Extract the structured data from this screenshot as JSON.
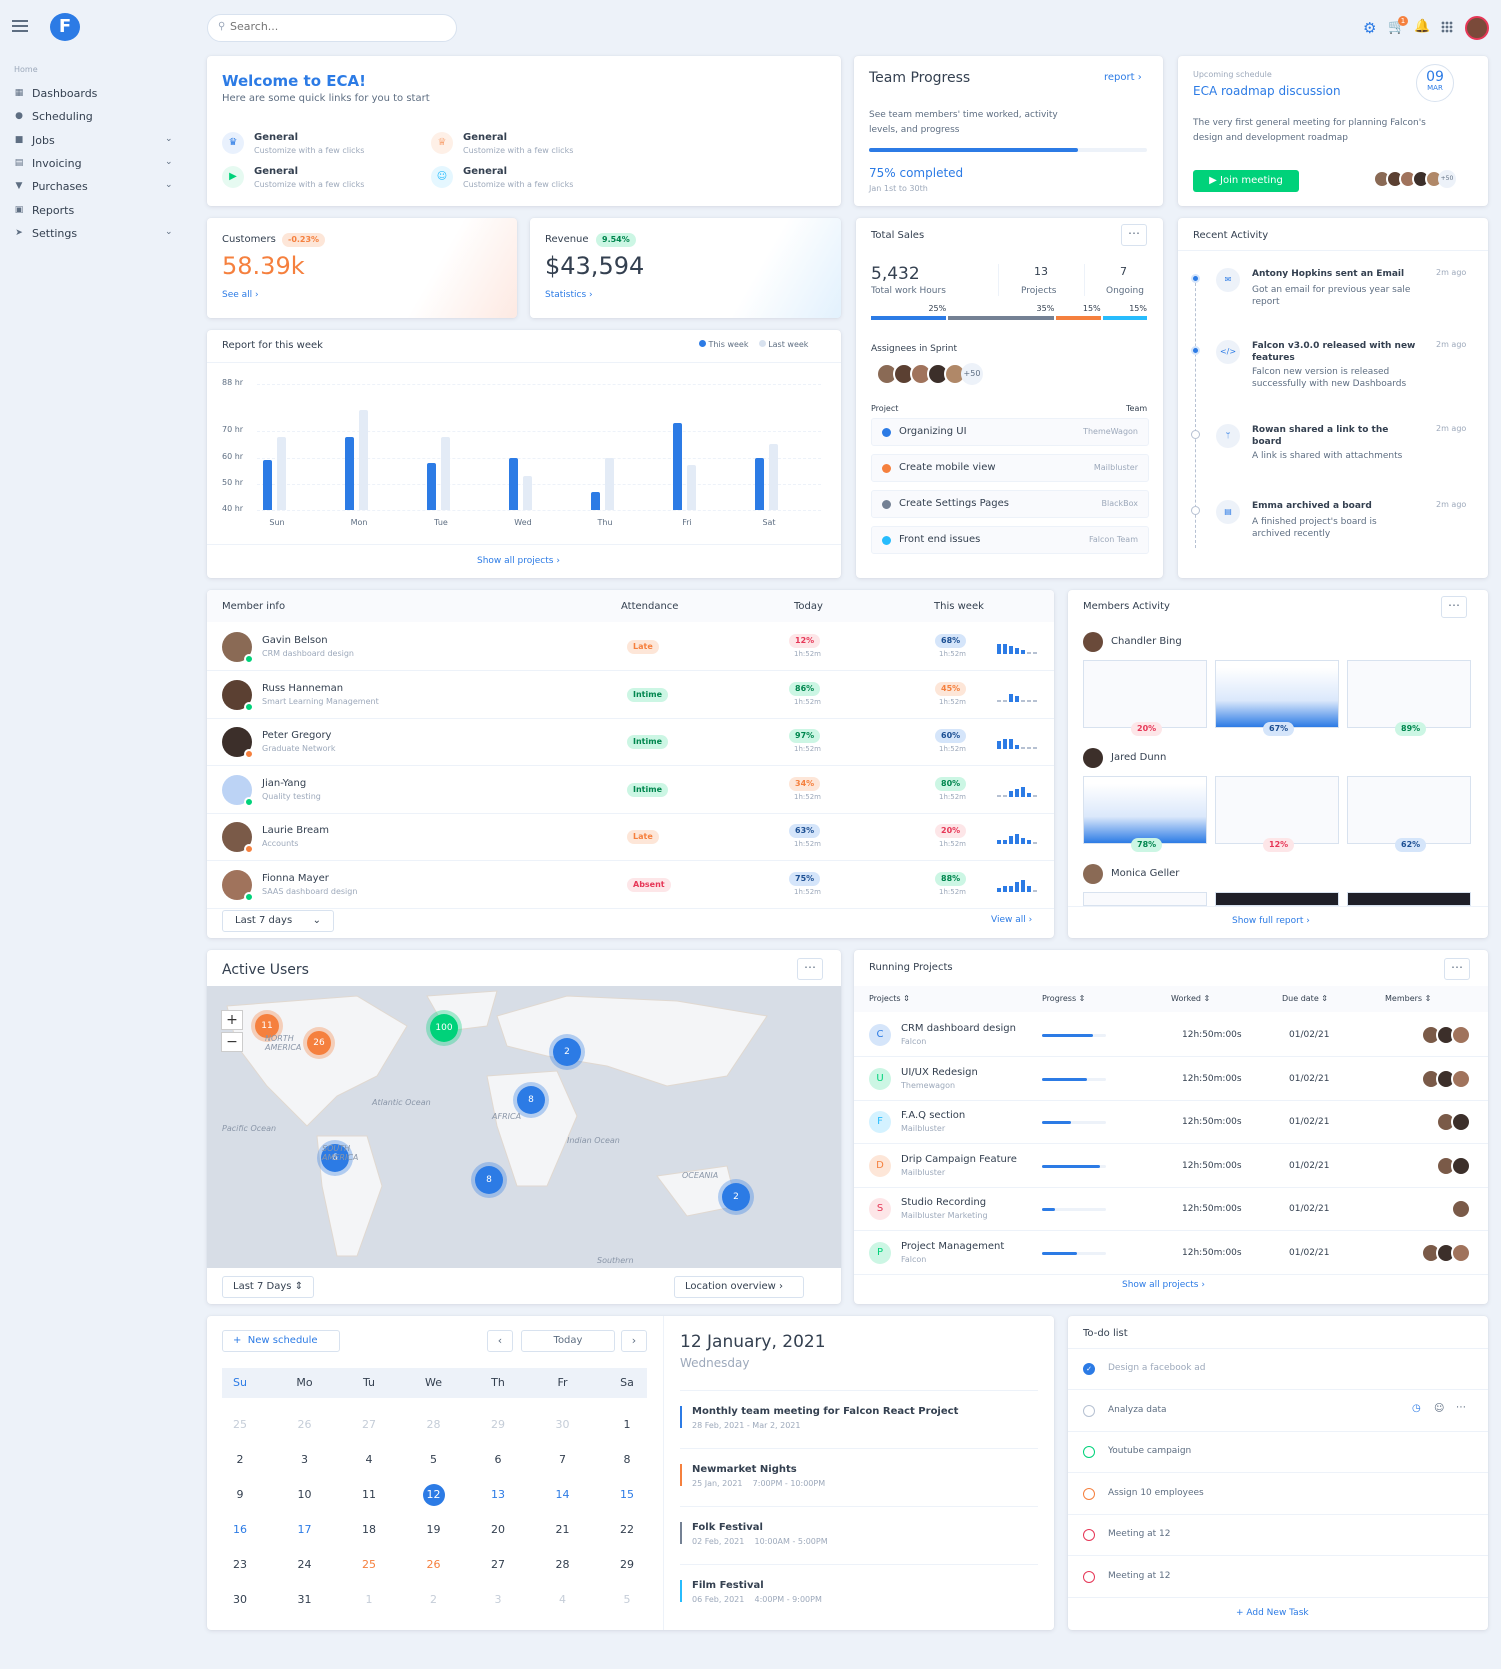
{
  "topbar": {
    "search_placeholder": "Search..."
  },
  "sidebar": {
    "section": "Home",
    "items": [
      {
        "label": "Dashboards"
      },
      {
        "label": "Scheduling"
      },
      {
        "label": "Jobs"
      },
      {
        "label": "Invoicing"
      },
      {
        "label": "Purchases"
      },
      {
        "label": "Reports"
      },
      {
        "label": "Settings"
      }
    ]
  },
  "welcome": {
    "title": "Welcome to ECA!",
    "subtitle": "Here are some quick links for you to start",
    "links": [
      {
        "title": "General",
        "desc": "Customize with a few clicks",
        "color": "#2c7be5"
      },
      {
        "title": "General",
        "desc": "Customize with a few clicks",
        "color": "#f5803e"
      },
      {
        "title": "General",
        "desc": "Customize with a few clicks",
        "color": "#00d27a"
      },
      {
        "title": "General",
        "desc": "Customize with a few clicks",
        "color": "#27bcfd"
      }
    ]
  },
  "team_progress": {
    "title": "Team Progress",
    "link": "report",
    "desc": "See team members' time worked, activity levels, and progress",
    "completed": "75% completed",
    "range": "Jan 1st to 30th",
    "progress": 0.75
  },
  "schedule": {
    "label": "Upcoming schedule",
    "title": "ECA roadmap discussion",
    "day": "09",
    "month": "MAR",
    "desc": "The very first general meeting for planning Falcon's design and development roadmap",
    "button": "Join meeting",
    "more": "+50"
  },
  "customers": {
    "label": "Customers",
    "badge": "-0.23%",
    "value": "58.39k",
    "link": "See all"
  },
  "revenue": {
    "label": "Revenue",
    "badge": "9.54%",
    "value": "$43,594",
    "link": "Statistics"
  },
  "total_sales": {
    "title": "Total Sales",
    "hours": "5,432",
    "hours_label": "Total work Hours",
    "projects": "13",
    "projects_label": "Projects",
    "ongoing": "7",
    "ongoing_label": "Ongoing",
    "segments": [
      {
        "pct": "25%",
        "color": "#2c7be5",
        "w": 25
      },
      {
        "pct": "35%",
        "color": "#748194",
        "w": 35
      },
      {
        "pct": "15%",
        "color": "#f5803e",
        "w": 15
      },
      {
        "pct": "15%",
        "color": "#27bcfd",
        "w": 15
      }
    ],
    "assignees_label": "Assignees in Sprint",
    "assignees_more": "+50",
    "project_col": "Project",
    "team_col": "Team",
    "projects_list": [
      {
        "name": "Organizing UI",
        "team": "ThemeWagon",
        "color": "#2c7be5"
      },
      {
        "name": "Create mobile view",
        "team": "Mailbluster",
        "color": "#f5803e"
      },
      {
        "name": "Create Settings Pages",
        "team": "BlackBox",
        "color": "#748194"
      },
      {
        "name": "Front end issues",
        "team": "Falcon Team",
        "color": "#27bcfd"
      }
    ]
  },
  "recent": {
    "title": "Recent Activity",
    "items": [
      {
        "title": "Antony Hopkins sent an Email",
        "desc": "Got an email for previous year sale report",
        "time": "2m ago",
        "icon": "envelope-icon"
      },
      {
        "title": "Falcon v3.0.0 released with new features",
        "desc": "Falcon new version is released successfully with new Dashboards",
        "time": "2m ago",
        "icon": "code-icon"
      },
      {
        "title": "Rowan shared a link to the board",
        "desc": "A link is shared with attachments",
        "time": "2m ago",
        "icon": "branch-icon"
      },
      {
        "title": "Emma archived a board",
        "desc": "A finished project's board is archived recently",
        "time": "2m ago",
        "icon": "archive-icon"
      }
    ]
  },
  "report": {
    "title": "Report for this week",
    "legend_this": "This week",
    "legend_last": "Last week",
    "y_ticks": [
      "88 hr",
      "70 hr",
      "60 hr",
      "50 hr",
      "40 hr"
    ],
    "link": "Show all projects"
  },
  "chart_data": {
    "type": "bar",
    "title": "Report for this week",
    "categories": [
      "Sun",
      "Mon",
      "Tue",
      "Wed",
      "Thu",
      "Fri",
      "Sat"
    ],
    "y_ticks": [
      "88 hr",
      "70 hr",
      "60 hr",
      "50 hr",
      "40 hr"
    ],
    "series": [
      {
        "name": "This week",
        "color": "#2c7be5",
        "values": [
          59,
          68,
          58,
          60,
          47,
          73,
          60
        ]
      },
      {
        "name": "Last week",
        "color": "#e3ebf6",
        "values": [
          68,
          78,
          68,
          53,
          60,
          57,
          65
        ]
      }
    ]
  },
  "members": {
    "title": "Member info",
    "col_att": "Attendance",
    "col_today": "Today",
    "col_week": "This week",
    "rows": [
      {
        "name": "Gavin Belson",
        "role": "CRM dashboard design",
        "att": "Late",
        "att_cls": "b-orange",
        "today": "12%",
        "today_cls": "b-red",
        "week": "68%",
        "week_cls": "b-blue",
        "time": "1h:52m",
        "status": "#00d27a"
      },
      {
        "name": "Russ Hanneman",
        "role": "Smart Learning Management",
        "att": "Intime",
        "att_cls": "b-green",
        "today": "86%",
        "today_cls": "b-green",
        "week": "45%",
        "week_cls": "b-orange",
        "time": "1h:52m",
        "status": "#00d27a"
      },
      {
        "name": "Peter Gregory",
        "role": "Graduate Network",
        "att": "Intime",
        "att_cls": "b-green",
        "today": "97%",
        "today_cls": "b-green",
        "week": "60%",
        "week_cls": "b-blue",
        "time": "1h:52m",
        "status": "#f5803e"
      },
      {
        "name": "Jian-Yang",
        "role": "Quality testing",
        "att": "Intime",
        "att_cls": "b-green",
        "today": "34%",
        "today_cls": "b-orange",
        "week": "80%",
        "week_cls": "b-green",
        "time": "1h:52m",
        "status": "#00d27a"
      },
      {
        "name": "Laurie Bream",
        "role": "Accounts",
        "att": "Late",
        "att_cls": "b-orange",
        "today": "63%",
        "today_cls": "b-blue",
        "week": "20%",
        "week_cls": "b-red",
        "time": "1h:52m",
        "status": "#f5803e"
      },
      {
        "name": "Fionna Mayer",
        "role": "SAAS dashboard design",
        "att": "Absent",
        "att_cls": "b-red",
        "today": "75%",
        "today_cls": "b-blue",
        "week": "88%",
        "week_cls": "b-green",
        "time": "1h:52m",
        "status": "#00d27a"
      }
    ],
    "filter": "Last 7 days",
    "link": "View all"
  },
  "members_activity": {
    "title": "Members Activity",
    "people": [
      {
        "name": "Chandler Bing",
        "pcts": [
          "20%",
          "67%",
          "89%"
        ]
      },
      {
        "name": "Jared Dunn",
        "pcts": [
          "78%",
          "12%",
          "62%"
        ]
      },
      {
        "name": "Monica Geller",
        "pcts": []
      }
    ],
    "link": "Show full report"
  },
  "active_users": {
    "title": "Active Users",
    "filter": "Last 7 Days",
    "link": "Location overview",
    "clusters": [
      {
        "n": "11",
        "c": "#f5803e"
      },
      {
        "n": "26",
        "c": "#f5803e"
      },
      {
        "n": "100",
        "c": "#00d27a"
      },
      {
        "n": "2",
        "c": "#2c7be5"
      },
      {
        "n": "8",
        "c": "#2c7be5"
      },
      {
        "n": "6",
        "c": "#2c7be5"
      },
      {
        "n": "8",
        "c": "#2c7be5"
      },
      {
        "n": "2",
        "c": "#2c7be5"
      }
    ],
    "labels": [
      "NORTH AMERICA",
      "Atlantic Ocean",
      "AFRICA",
      "Pacific Ocean",
      "SOUTH AMERICA",
      "Indian Ocean",
      "OCEANIA",
      "Southern"
    ]
  },
  "running": {
    "title": "Running Projects",
    "cols": [
      "Projects",
      "Progress",
      "Worked",
      "Due date",
      "Members"
    ],
    "rows": [
      {
        "letter": "C",
        "name": "CRM dashboard design",
        "org": "Falcon",
        "p": 0.8,
        "worked": "12h:50m:00s",
        "due": "01/02/21",
        "bg": "#d5e5fa",
        "fg": "#2c7be5"
      },
      {
        "letter": "U",
        "name": "UI/UX Redesign",
        "org": "Themewagon",
        "p": 0.7,
        "worked": "12h:50m:00s",
        "due": "01/02/21",
        "bg": "#ccf6e4",
        "fg": "#00d27a"
      },
      {
        "letter": "F",
        "name": "F.A.Q section",
        "org": "Mailbluster",
        "p": 0.45,
        "worked": "12h:50m:00s",
        "due": "01/02/21",
        "bg": "#d4f2ff",
        "fg": "#27bcfd"
      },
      {
        "letter": "D",
        "name": "Drip Campaign Feature",
        "org": "Mailbluster",
        "p": 0.9,
        "worked": "12h:50m:00s",
        "due": "01/02/21",
        "bg": "#fde6d8",
        "fg": "#f5803e"
      },
      {
        "letter": "S",
        "name": "Studio Recording",
        "org": "Mailbluster Marketing",
        "p": 0.2,
        "worked": "12h:50m:00s",
        "due": "01/02/21",
        "bg": "#fde6e8",
        "fg": "#e63757"
      },
      {
        "letter": "P",
        "name": "Project Management",
        "org": "Falcon",
        "p": 0.55,
        "worked": "12h:50m:00s",
        "due": "01/02/21",
        "bg": "#ccf6e4",
        "fg": "#00d27a"
      }
    ],
    "link": "Show all projects"
  },
  "calendar": {
    "new": "New schedule",
    "today": "Today",
    "weekdays": [
      "Su",
      "Mo",
      "Tu",
      "We",
      "Th",
      "Fr",
      "Sa"
    ],
    "days": [
      [
        "25",
        "26",
        "27",
        "28",
        "29",
        "30",
        "1"
      ],
      [
        "2",
        "3",
        "4",
        "5",
        "6",
        "7",
        "8"
      ],
      [
        "9",
        "10",
        "11",
        "12",
        "13",
        "14",
        "15"
      ],
      [
        "16",
        "17",
        "18",
        "19",
        "20",
        "21",
        "22"
      ],
      [
        "23",
        "24",
        "25",
        "26",
        "27",
        "28",
        "29"
      ],
      [
        "30",
        "31",
        "1",
        "2",
        "3",
        "4",
        "5"
      ]
    ]
  },
  "events": {
    "date": "12 January, 2021",
    "weekday": "Wednesday",
    "items": [
      {
        "title": "Monthly team meeting for Falcon React Project",
        "sub": "28 Feb, 2021 - Mar 2, 2021",
        "color": "#2c7be5"
      },
      {
        "title": "Newmarket Nights",
        "sub": "25 Jan, 2021    7:00PM - 10:00PM",
        "color": "#f5803e"
      },
      {
        "title": "Folk Festival",
        "sub": "02 Feb, 2021    10:00AM - 5:00PM",
        "color": "#748194"
      },
      {
        "title": "Film Festival",
        "sub": "06 Feb, 2021    4:00PM - 9:00PM",
        "color": "#27bcfd"
      }
    ]
  },
  "todo": {
    "title": "To-do list",
    "items": [
      {
        "text": "Design a facebook ad",
        "color": "#2c7be5",
        "done": true
      },
      {
        "text": "Analyza data",
        "color": "#b6c1d2",
        "done": false
      },
      {
        "text": "Youtube campaign",
        "color": "#00d27a",
        "done": false
      },
      {
        "text": "Assign 10 employees",
        "color": "#f5803e",
        "done": false
      },
      {
        "text": "Meeting at 12",
        "color": "#e63757",
        "done": false
      },
      {
        "text": "Meeting at 12",
        "color": "#e63757",
        "done": false
      }
    ],
    "add": "+ Add New Task"
  }
}
